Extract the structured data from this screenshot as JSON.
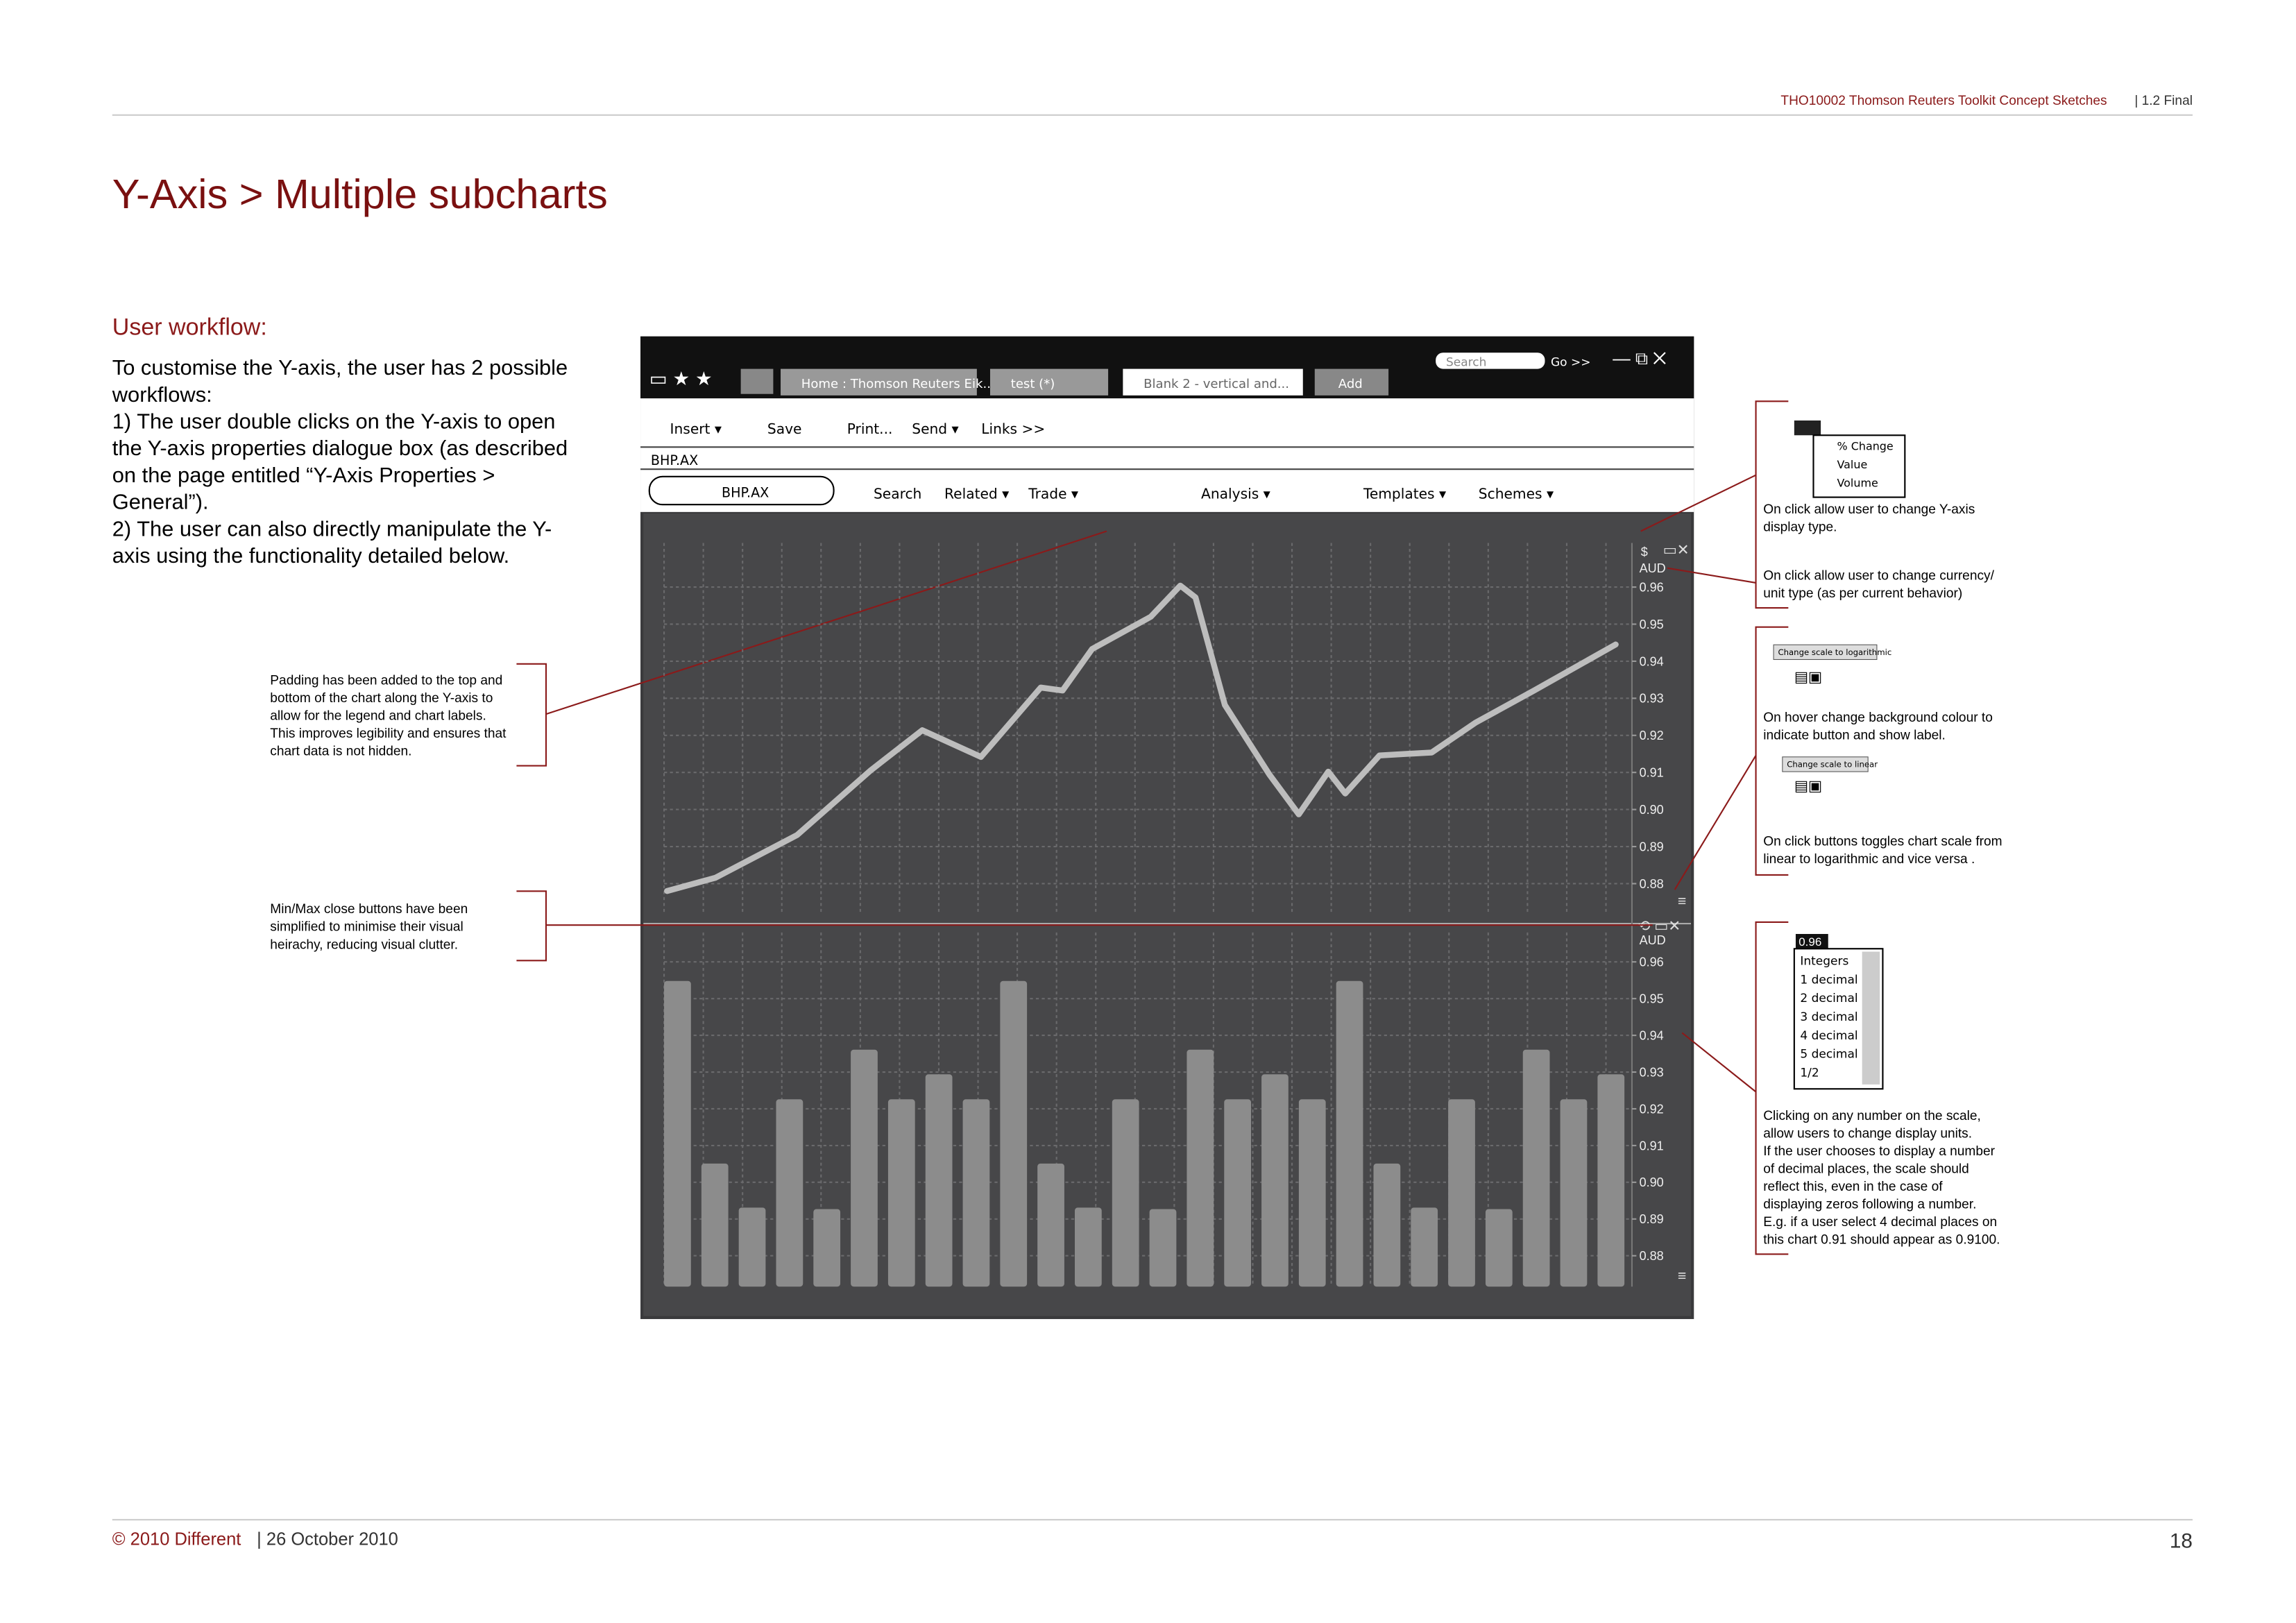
{
  "header": {
    "doc": "THO10002 Thomson Reuters Toolkit Concept Sketches",
    "version": "| 1.2 Final"
  },
  "title": "Y-Axis > Multiple subcharts",
  "workflow": {
    "heading": "User workflow:",
    "lines": [
      "To customise the Y-axis, the user has 2 possible",
      "workflows:",
      "1) The user double clicks on the Y-axis to open",
      "the Y-axis properties dialogue box (as described",
      "on the page entitled “Y-Axis Properties >",
      "General”).",
      "2) The user can also directly manipulate the Y-",
      "axis using the functionality detailed below."
    ]
  },
  "app": {
    "search": "Search",
    "go": "Go >>",
    "tabs": [
      "Home : Thomson Reuters Eik..",
      "test (*)",
      "Blank 2 - vertical and...",
      "Add"
    ],
    "menu": [
      "Insert ▾",
      "Save",
      "Print...",
      "Send ▾",
      "Links >>"
    ],
    "ric": "BHP.AX",
    "symbol": "BHP.AX",
    "tools": [
      "Search",
      "Related ▾",
      "Trade ▾",
      "Analysis ▾",
      "Templates ▾",
      "Schemes ▾"
    ],
    "upper_chart": {
      "type": "line",
      "currency": "$",
      "unit": "AUD",
      "grid": true,
      "color": "#bdbdbd",
      "x": [
        0,
        5.1,
        13.7,
        21.5,
        26.9,
        33.1,
        39.4,
        41.7,
        44.8,
        51.0,
        54.1,
        55.7,
        58.8,
        63.5,
        66.6,
        69.7,
        71.5,
        75.1,
        80.6,
        85.2,
        91.4,
        100
      ],
      "xlim": [
        0,
        100
      ],
      "values": [
        0.878,
        0.8816,
        0.8931,
        0.9106,
        0.9214,
        0.9142,
        0.9329,
        0.9321,
        0.9433,
        0.952,
        0.9604,
        0.9572,
        0.9282,
        0.9094,
        0.8987,
        0.9102,
        0.9043,
        0.9146,
        0.9154,
        0.9234,
        0.9321,
        0.9445
      ],
      "ylim": [
        0.8716,
        0.9719
      ],
      "yticks": [
        0.96,
        0.95,
        0.94,
        0.93,
        0.92,
        0.91,
        {
          "value": 0.9,
          "label": "0.90"
        },
        0.89,
        0.88
      ]
    },
    "lower_chart": {
      "type": "bar",
      "unit": "AUD",
      "grid": true,
      "color": "#8c8c8c",
      "values": [
        0.9548,
        0.9051,
        0.8931,
        0.9226,
        0.8927,
        0.9361,
        0.9226,
        0.9294,
        0.9226,
        0.9548,
        0.9051,
        0.8931,
        0.9226,
        0.8927,
        0.9361,
        0.9226,
        0.9294,
        0.9226,
        0.9548,
        0.9051,
        0.8931,
        0.9226,
        0.8927,
        0.9361,
        0.9226,
        0.9294
      ],
      "ylim": [
        0.8716,
        0.968
      ],
      "yticks": [
        0.96,
        0.95,
        0.94,
        0.93,
        0.92,
        0.91,
        {
          "value": 0.9,
          "label": "0.90"
        },
        0.89,
        0.88
      ]
    }
  },
  "annotations": {
    "left": [
      {
        "lines": [
          "Padding has been added to the top and",
          "bottom of the chart along the Y-axis to",
          "allow for the legend and chart labels.",
          "This improves legibility and ensures that",
          "chart data is not hidden."
        ]
      },
      {
        "lines": [
          "Min/Max close buttons have been",
          "simplified to minimise their visual",
          "heirachy, reducing visual clutter."
        ]
      }
    ],
    "right": [
      {
        "lines": [
          "On click allow user to change Y-axis",
          "display type."
        ]
      },
      {
        "lines": [
          "On click allow user to change currency/",
          "unit type (as per current behavior)"
        ]
      },
      {
        "lines": [
          "On hover change background colour to",
          "indicate button and show label."
        ]
      },
      {
        "lines": [
          "On click buttons toggles chart scale from",
          "linear to logarithmic and vice versa ."
        ]
      },
      {
        "lines": [
          "Clicking on any number on the scale,",
          "allow users to change display units.",
          "If the user chooses to display a number",
          "of decimal places, the scale should",
          "reflect this, even in the case of",
          "displaying zeros following a number.",
          "E.g. if a user select 4 decimal places on",
          "this chart 0.91 should appear as 0.9100."
        ]
      }
    ]
  },
  "popups": {
    "type_menu": [
      "% Change",
      "Value",
      "Volume"
    ],
    "log_label": "Change scale to logarithmic",
    "linear_label": "Change scale to linear",
    "decimal_title": "0.96",
    "decimal_menu": [
      "Integers",
      "1 decimal",
      "2 decimal",
      "3 decimal",
      "4 decimal",
      "5 decimal",
      "1/2"
    ]
  },
  "footer": {
    "copyright": "© 2010 Different",
    "date": "| 26 October 2010",
    "page": "18"
  }
}
